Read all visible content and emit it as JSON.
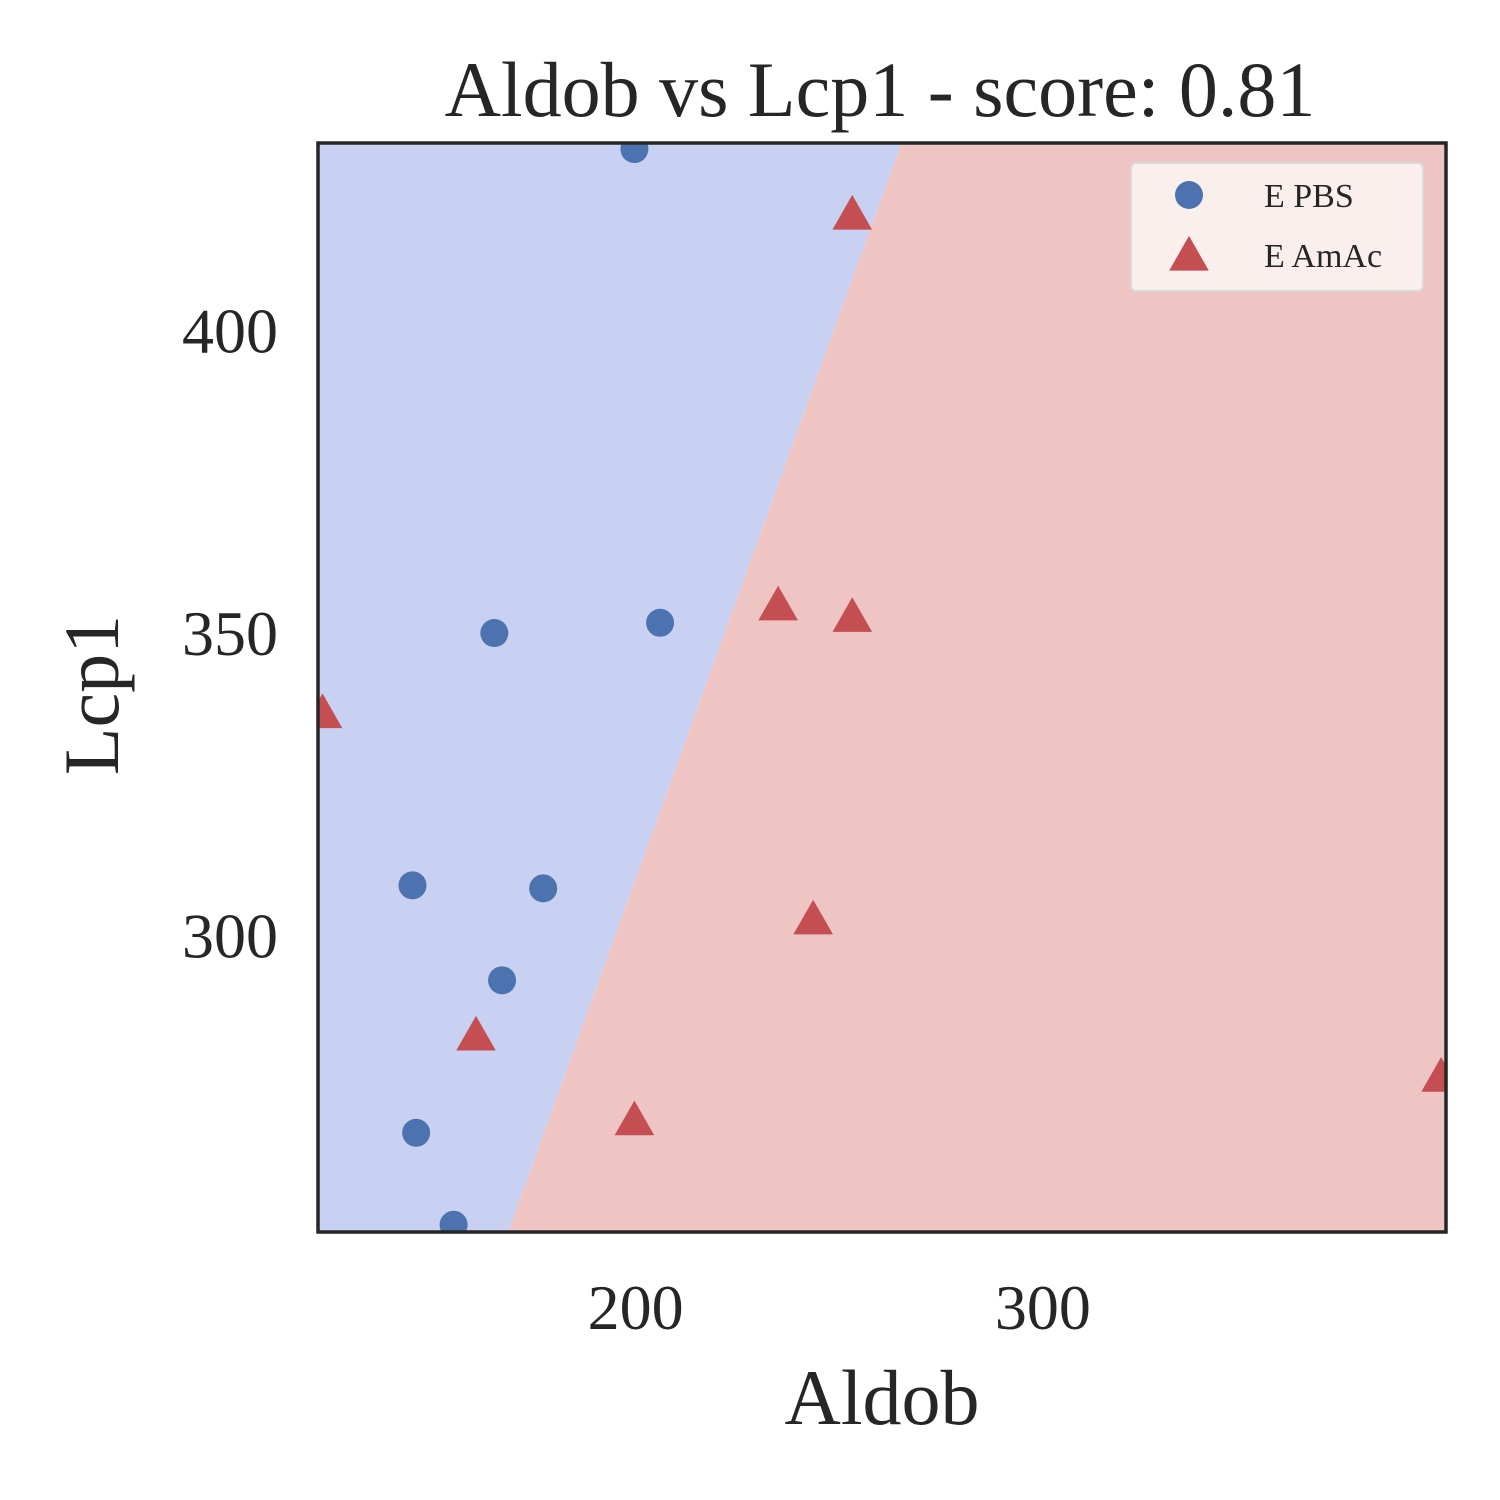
{
  "chart_data": {
    "type": "scatter",
    "title": "Aldob vs Lcp1 - score: 0.81",
    "xlabel": "Aldob",
    "ylabel": "Lcp1",
    "xlim": [
      122,
      399
    ],
    "ylim": [
      251,
      431
    ],
    "x_ticks": [
      200,
      300
    ],
    "y_ticks": [
      300,
      350,
      400
    ],
    "grid": false,
    "legend_position": "top-right",
    "regions": {
      "boundary": [
        [
          168.7,
          251
        ],
        [
          265.3,
          431
        ]
      ],
      "left_color": "#c8d1f1",
      "right_color": "#efc5c4"
    },
    "series": [
      {
        "name": "E PBS",
        "marker": "circle",
        "color": "#4c72b0",
        "points": [
          [
            199.7,
            430
          ],
          [
            206,
            351.7
          ],
          [
            165.3,
            350
          ],
          [
            145.2,
            308.3
          ],
          [
            177.3,
            307.8
          ],
          [
            167.2,
            292.6
          ],
          [
            146.1,
            267.4
          ],
          [
            155.3,
            252.2
          ]
        ]
      },
      {
        "name": "E AmAc",
        "marker": "triangle",
        "color": "#c44e52",
        "points": [
          [
            253.2,
            419.1
          ],
          [
            235,
            354.5
          ],
          [
            253.2,
            352.6
          ],
          [
            123.1,
            336.7
          ],
          [
            243.6,
            302.6
          ],
          [
            160.8,
            283.4
          ],
          [
            199.7,
            269.4
          ],
          [
            397.8,
            276.6
          ]
        ]
      }
    ]
  }
}
